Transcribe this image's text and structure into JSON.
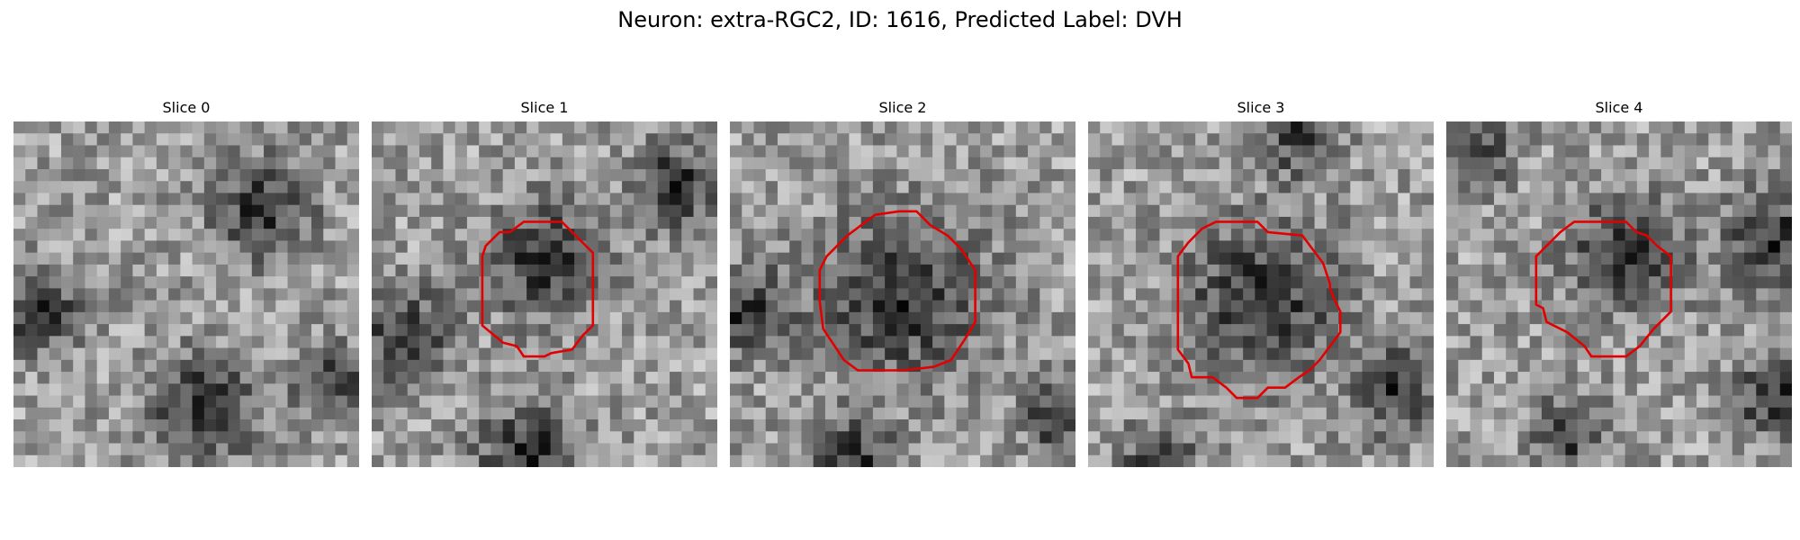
{
  "figure": {
    "title": "Neuron: extra-RGC2, ID: 1616, Predicted Label: DVH",
    "contour_color": "#e30000",
    "slices": [
      {
        "label": "Slice 0",
        "seed": 11,
        "dark_blobs": [
          [
            0.72,
            0.25,
            0.14
          ],
          [
            0.08,
            0.55,
            0.12
          ],
          [
            0.55,
            0.83,
            0.15
          ],
          [
            0.92,
            0.75,
            0.1
          ]
        ],
        "contour": []
      },
      {
        "label": "Slice 1",
        "seed": 23,
        "dark_blobs": [
          [
            0.5,
            0.4,
            0.16
          ],
          [
            0.1,
            0.62,
            0.13
          ],
          [
            0.45,
            0.96,
            0.14
          ],
          [
            0.88,
            0.18,
            0.12
          ]
        ],
        "contour": [
          [
            0.33,
            0.36
          ],
          [
            0.37,
            0.32
          ],
          [
            0.4,
            0.32
          ],
          [
            0.44,
            0.29
          ],
          [
            0.55,
            0.29
          ],
          [
            0.58,
            0.32
          ],
          [
            0.64,
            0.38
          ],
          [
            0.64,
            0.59
          ],
          [
            0.61,
            0.62
          ],
          [
            0.58,
            0.66
          ],
          [
            0.52,
            0.67
          ],
          [
            0.5,
            0.68
          ],
          [
            0.44,
            0.68
          ],
          [
            0.42,
            0.65
          ],
          [
            0.38,
            0.64
          ],
          [
            0.32,
            0.59
          ],
          [
            0.32,
            0.39
          ]
        ]
      },
      {
        "label": "Slice 2",
        "seed": 37,
        "dark_blobs": [
          [
            0.5,
            0.5,
            0.24
          ],
          [
            0.05,
            0.55,
            0.12
          ],
          [
            0.35,
            0.98,
            0.12
          ],
          [
            0.95,
            0.85,
            0.1
          ]
        ],
        "contour": [
          [
            0.28,
            0.39
          ],
          [
            0.34,
            0.33
          ],
          [
            0.38,
            0.3
          ],
          [
            0.42,
            0.27
          ],
          [
            0.49,
            0.26
          ],
          [
            0.54,
            0.26
          ],
          [
            0.58,
            0.3
          ],
          [
            0.63,
            0.33
          ],
          [
            0.67,
            0.37
          ],
          [
            0.71,
            0.43
          ],
          [
            0.71,
            0.58
          ],
          [
            0.68,
            0.63
          ],
          [
            0.64,
            0.69
          ],
          [
            0.59,
            0.71
          ],
          [
            0.5,
            0.72
          ],
          [
            0.37,
            0.72
          ],
          [
            0.33,
            0.69
          ],
          [
            0.27,
            0.6
          ],
          [
            0.26,
            0.52
          ],
          [
            0.26,
            0.43
          ]
        ]
      },
      {
        "label": "Slice 3",
        "seed": 51,
        "dark_blobs": [
          [
            0.5,
            0.52,
            0.22
          ],
          [
            0.88,
            0.78,
            0.12
          ],
          [
            0.2,
            0.98,
            0.1
          ],
          [
            0.62,
            0.05,
            0.1
          ]
        ],
        "contour": [
          [
            0.26,
            0.39
          ],
          [
            0.29,
            0.35
          ],
          [
            0.33,
            0.31
          ],
          [
            0.37,
            0.29
          ],
          [
            0.49,
            0.29
          ],
          [
            0.52,
            0.32
          ],
          [
            0.62,
            0.33
          ],
          [
            0.65,
            0.37
          ],
          [
            0.68,
            0.41
          ],
          [
            0.7,
            0.47
          ],
          [
            0.7,
            0.48
          ],
          [
            0.71,
            0.51
          ],
          [
            0.73,
            0.55
          ],
          [
            0.73,
            0.61
          ],
          [
            0.7,
            0.65
          ],
          [
            0.67,
            0.69
          ],
          [
            0.64,
            0.72
          ],
          [
            0.61,
            0.74
          ],
          [
            0.57,
            0.77
          ],
          [
            0.52,
            0.77
          ],
          [
            0.49,
            0.8
          ],
          [
            0.43,
            0.8
          ],
          [
            0.4,
            0.77
          ],
          [
            0.36,
            0.74
          ],
          [
            0.3,
            0.74
          ],
          [
            0.29,
            0.7
          ],
          [
            0.26,
            0.66
          ],
          [
            0.26,
            0.6
          ],
          [
            0.26,
            0.52
          ]
        ]
      },
      {
        "label": "Slice 4",
        "seed": 67,
        "dark_blobs": [
          [
            0.52,
            0.38,
            0.16
          ],
          [
            0.95,
            0.35,
            0.14
          ],
          [
            0.08,
            0.1,
            0.1
          ],
          [
            0.95,
            0.8,
            0.12
          ],
          [
            0.35,
            0.9,
            0.1
          ]
        ],
        "contour": [
          [
            0.26,
            0.39
          ],
          [
            0.33,
            0.32
          ],
          [
            0.37,
            0.29
          ],
          [
            0.52,
            0.29
          ],
          [
            0.55,
            0.32
          ],
          [
            0.58,
            0.33
          ],
          [
            0.61,
            0.36
          ],
          [
            0.65,
            0.39
          ],
          [
            0.65,
            0.55
          ],
          [
            0.6,
            0.6
          ],
          [
            0.56,
            0.65
          ],
          [
            0.52,
            0.68
          ],
          [
            0.42,
            0.68
          ],
          [
            0.4,
            0.65
          ],
          [
            0.35,
            0.61
          ],
          [
            0.29,
            0.58
          ],
          [
            0.28,
            0.54
          ],
          [
            0.26,
            0.53
          ],
          [
            0.26,
            0.43
          ]
        ]
      }
    ]
  }
}
